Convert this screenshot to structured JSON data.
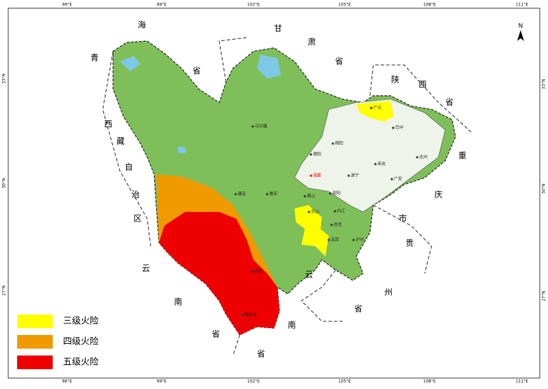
{
  "frame": {
    "top_ticks": [
      "96°E",
      "99°E",
      "102°E",
      "105°E",
      "108°E",
      "111°E"
    ],
    "bottom_ticks": [
      "96°E",
      "99°E",
      "102°E",
      "105°E",
      "108°E",
      "111°E"
    ],
    "left_ticks": [
      "33°N",
      "30°N",
      "27°N"
    ],
    "right_ticks": [
      "33°N",
      "30°N",
      "27°N"
    ]
  },
  "north_arrow": "N",
  "region_labels": [
    "海",
    "青",
    "省",
    "甘",
    "肃",
    "省",
    "陕",
    "西",
    "省",
    "重",
    "庆",
    "市",
    "贵",
    "州",
    "省",
    "云",
    "南",
    "省",
    "云",
    "南",
    "省",
    "西",
    "藏",
    "自",
    "治",
    "区"
  ],
  "cities": [
    "马尔康",
    "广元",
    "巴中",
    "绵阳",
    "德阳",
    "南充",
    "达州",
    "遂宁",
    "广安",
    "成都",
    "康定",
    "雅安",
    "眉山",
    "资阳",
    "乐山",
    "内江",
    "自贡",
    "宜宾",
    "泸州",
    "西昌",
    "攀枝花"
  ],
  "legend": [
    {
      "label": "三级火险",
      "color": "#ffff00"
    },
    {
      "label": "四级火险",
      "color": "#f09a00"
    },
    {
      "label": "五级火险",
      "color": "#ee0000"
    }
  ]
}
